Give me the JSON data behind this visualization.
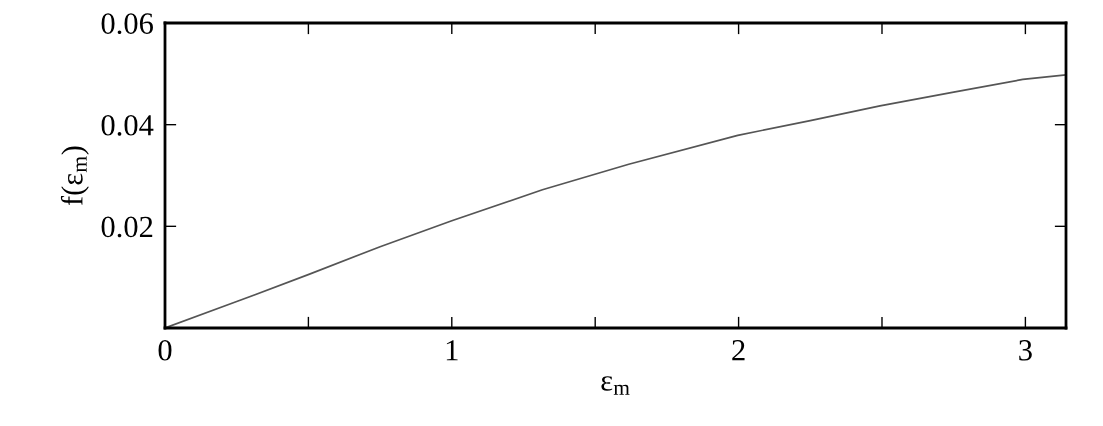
{
  "chart_data": {
    "type": "line",
    "xlabel": "ε$_{m}$",
    "ylabel": "f(ε$_{m}$)",
    "x": [
      0,
      0.25,
      0.504,
      0.75,
      1.0,
      1.316,
      1.617,
      1.997,
      2.25,
      2.493,
      2.75,
      2.991,
      3.1416
    ],
    "series": [
      {
        "color": "#555555",
        "values": [
          0,
          0.0052,
          0.0106,
          0.016,
          0.0211,
          0.0272,
          0.0322,
          0.0379,
          0.0408,
          0.0437,
          0.0464,
          0.0489,
          0.0498
        ]
      }
    ],
    "xlim": [
      0,
      3.1416
    ],
    "ylim": [
      0,
      0.06
    ],
    "xticks": [
      0,
      {
        "value": 0.5,
        "label": null
      },
      1,
      {
        "value": 1.5,
        "label": null
      },
      2,
      {
        "value": 2.5,
        "label": null
      },
      3
    ],
    "yticks": [
      {
        "value": 0.02,
        "label": "0.02"
      },
      {
        "value": 0.04,
        "label": "0.04"
      },
      {
        "value": 0.06,
        "label": "0.06"
      }
    ],
    "grid": false,
    "legend": false,
    "marker": "none",
    "line_style": "solid"
  }
}
